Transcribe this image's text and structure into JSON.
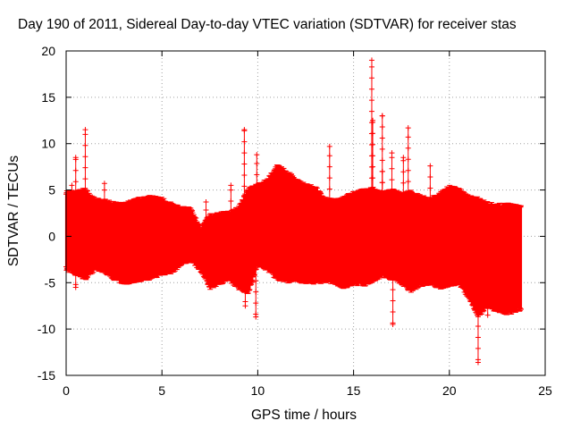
{
  "chart_data": {
    "type": "scatter",
    "title": "Day 190 of 2011, Sidereal Day-to-day VTEC variation (SDTVAR) for receiver stas",
    "xlabel": "GPS time / hours",
    "ylabel": "SDTVAR / TECUs",
    "xlim": [
      0,
      25
    ],
    "ylim": [
      -15,
      20
    ],
    "xticks": [
      0,
      5,
      10,
      15,
      20,
      25
    ],
    "yticks": [
      -15,
      -10,
      -5,
      0,
      5,
      10,
      15,
      20
    ],
    "grid": true,
    "marker": "+",
    "series_color": "#ff0000",
    "envelope": {
      "x": [
        0,
        0.5,
        1,
        1.5,
        2,
        2.5,
        3,
        3.5,
        4,
        4.5,
        5,
        5.5,
        6,
        6.5,
        7,
        7.5,
        8,
        8.5,
        9,
        9.5,
        10,
        10.5,
        11,
        11.5,
        12,
        12.5,
        13,
        13.5,
        14,
        14.5,
        15,
        15.5,
        16,
        16.5,
        17,
        17.5,
        18,
        18.5,
        19,
        19.5,
        20,
        20.5,
        21,
        21.5,
        22,
        22.5,
        23,
        23.5,
        23.75
      ],
      "upper": [
        4.8,
        4.7,
        5.0,
        3.9,
        3.8,
        3.5,
        3.4,
        3.8,
        4.1,
        4.2,
        4.0,
        3.4,
        3.0,
        2.9,
        0.8,
        2.2,
        2.4,
        2.5,
        3.0,
        5.0,
        5.5,
        6.0,
        7.5,
        7.0,
        6.0,
        5.5,
        5.2,
        4.0,
        3.8,
        4.2,
        4.6,
        4.9,
        5.1,
        4.6,
        4.9,
        4.5,
        4.8,
        4.2,
        4.0,
        4.5,
        5.3,
        5.0,
        4.2,
        4.0,
        3.5,
        3.3,
        3.4,
        3.2,
        3.3
      ],
      "lower": [
        -3.5,
        -4.0,
        -4.5,
        -3.5,
        -3.7,
        -4.5,
        -5.0,
        -4.8,
        -4.6,
        -4.4,
        -4.0,
        -3.8,
        -3.0,
        -2.5,
        -3.5,
        -5.5,
        -5.0,
        -4.6,
        -5.5,
        -6.0,
        -3.0,
        -3.5,
        -4.5,
        -4.8,
        -4.7,
        -4.9,
        -4.9,
        -4.8,
        -4.9,
        -5.5,
        -5.0,
        -5.2,
        -4.8,
        -4.2,
        -4.5,
        -5.0,
        -5.8,
        -5.2,
        -5.0,
        -5.5,
        -5.2,
        -5.0,
        -6.5,
        -8.5,
        -7.5,
        -8.0,
        -8.3,
        -8.0,
        -7.8
      ]
    },
    "spikes": [
      {
        "x": 0.3,
        "y": 5.5
      },
      {
        "x": 0.5,
        "y": 8.5
      },
      {
        "x": 0.5,
        "y": -5.5
      },
      {
        "x": 1.0,
        "y": 11.5
      },
      {
        "x": 2.0,
        "y": 5.7
      },
      {
        "x": 7.3,
        "y": 3.7
      },
      {
        "x": 8.6,
        "y": 5.5
      },
      {
        "x": 9.3,
        "y": 11.5
      },
      {
        "x": 9.35,
        "y": -7.5
      },
      {
        "x": 9.9,
        "y": -8.7
      },
      {
        "x": 9.95,
        "y": 8.8
      },
      {
        "x": 13.75,
        "y": 9.7
      },
      {
        "x": 15.95,
        "y": 19.0
      },
      {
        "x": 16.0,
        "y": 12.5
      },
      {
        "x": 16.5,
        "y": 13.0
      },
      {
        "x": 16.5,
        "y": 7.0
      },
      {
        "x": 17.0,
        "y": 9.0
      },
      {
        "x": 17.05,
        "y": -9.5
      },
      {
        "x": 17.6,
        "y": 8.5
      },
      {
        "x": 17.85,
        "y": 11.7
      },
      {
        "x": 19.0,
        "y": 7.6
      },
      {
        "x": 21.5,
        "y": -13.6
      },
      {
        "x": 22.0,
        "y": -8.5
      }
    ]
  }
}
